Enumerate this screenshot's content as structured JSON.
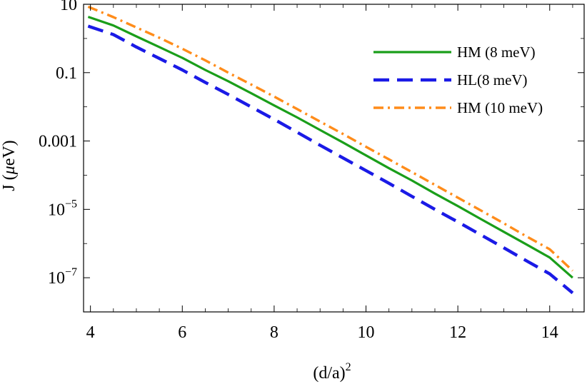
{
  "chart_data": {
    "type": "line",
    "xlabel": "(d/a)",
    "xlabel_sup": "2",
    "ylabel_main": "J (",
    "ylabel_mu": "μ",
    "ylabel_tail": "eV)",
    "xlim": [
      3.85,
      14.75
    ],
    "ylim": [
      1e-08,
      10
    ],
    "yscale": "log",
    "x_ticks": [
      {
        "value": 4,
        "label": "4"
      },
      {
        "value": 6,
        "label": "6"
      },
      {
        "value": 8,
        "label": "8"
      },
      {
        "value": 10,
        "label": "10"
      },
      {
        "value": 12,
        "label": "12"
      },
      {
        "value": 14,
        "label": "14"
      }
    ],
    "y_ticks": [
      {
        "value": 10,
        "label": "10"
      },
      {
        "value": 0.1,
        "label": "0.1"
      },
      {
        "value": 0.001,
        "label": "0.001"
      },
      {
        "value": 1e-05,
        "label_base": "10",
        "label_exp": "−5"
      },
      {
        "value": 1e-07,
        "label_base": "10",
        "label_exp": "−7"
      }
    ],
    "legend_position": "top-right",
    "series": [
      {
        "name": "HM (8 meV)",
        "color": "#1a9e1a",
        "style": "solid",
        "x": [
          3.95,
          4.5,
          5,
          5.5,
          6,
          6.5,
          7,
          7.5,
          8,
          8.5,
          9,
          9.5,
          10,
          10.5,
          11,
          11.5,
          12,
          12.5,
          13,
          13.5,
          14,
          14.5
        ],
        "y": [
          4.3,
          2.4,
          1.15,
          0.56,
          0.27,
          0.12,
          0.056,
          0.025,
          0.011,
          0.0049,
          0.0021,
          0.0009,
          0.00038,
          0.00016,
          7e-05,
          2.9e-05,
          1.25e-05,
          5.2e-06,
          2.2e-06,
          9.3e-07,
          3.9e-07,
          1e-07
        ]
      },
      {
        "name": "HL(8 meV)",
        "color": "#1a1ae6",
        "style": "dashed",
        "x": [
          3.95,
          4.5,
          5,
          5.5,
          6,
          6.5,
          7,
          7.5,
          8,
          8.5,
          9,
          9.5,
          10,
          10.5,
          11,
          11.5,
          12,
          12.5,
          13,
          13.5,
          14,
          14.5
        ],
        "y": [
          2.3,
          1.3,
          0.56,
          0.26,
          0.12,
          0.052,
          0.023,
          0.01,
          0.0043,
          0.0018,
          0.00075,
          0.00032,
          0.000136,
          5.8e-05,
          2.4e-05,
          1e-05,
          4.3e-06,
          1.8e-06,
          7.5e-07,
          3.1e-07,
          1.3e-07,
          3.6e-08
        ]
      },
      {
        "name": "HM (10 meV)",
        "color": "#ff8c1a",
        "style": "dashdot",
        "x": [
          3.95,
          4.5,
          5,
          5.5,
          6,
          6.5,
          7,
          7.5,
          8,
          8.5,
          9,
          9.5,
          10,
          10.5,
          11,
          11.5,
          12,
          12.5,
          13,
          13.5,
          14,
          14.5
        ],
        "y": [
          8.5,
          4.2,
          2.1,
          1.05,
          0.5,
          0.23,
          0.1,
          0.045,
          0.02,
          0.0086,
          0.0037,
          0.0016,
          0.00068,
          0.00029,
          0.000123,
          5.2e-05,
          2.2e-05,
          9.3e-06,
          3.9e-06,
          1.6e-06,
          6.8e-07,
          1.6e-07
        ]
      }
    ]
  }
}
